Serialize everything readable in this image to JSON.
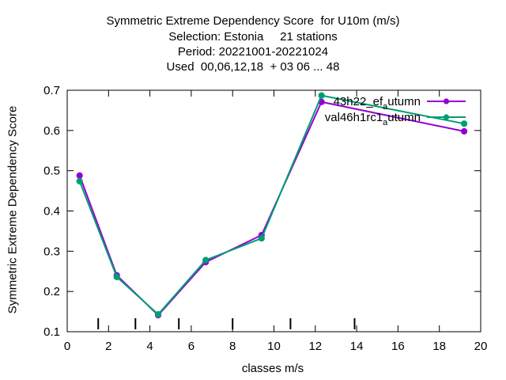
{
  "chart_data": {
    "type": "line",
    "title_lines": [
      "Symmetric Extreme Dependency Score  for U10m (m/s)",
      "Selection: Estonia     21 stations",
      "Period: 20221001-20221024",
      "Used  00,06,12,18  + 03 06 ... 48"
    ],
    "xlabel": "classes m/s",
    "ylabel": "Symmetric Extreme Dependency Score",
    "xlim": [
      0,
      20
    ],
    "ylim": [
      0.1,
      0.7
    ],
    "xticks": [
      0,
      2,
      4,
      6,
      8,
      10,
      12,
      14,
      16,
      18,
      20
    ],
    "yticks": [
      0.1,
      0.2,
      0.3,
      0.4,
      0.5,
      0.6,
      0.7
    ],
    "class_boundaries": [
      1.5,
      3.3,
      5.4,
      8,
      10.8,
      13.9
    ],
    "legend_position": "top-right",
    "grid": false,
    "series": [
      {
        "name": "43h22_ef_a utumn",
        "legend_main": "43h22_ef",
        "legend_sub": "a",
        "legend_rest": "utumn",
        "color": "#9400d3",
        "x": [
          0.6,
          2.4,
          4.4,
          6.7,
          9.4,
          12.3,
          19.2
        ],
        "y": [
          0.488,
          0.24,
          0.141,
          0.273,
          0.34,
          0.671,
          0.598
        ]
      },
      {
        "name": "val46h1rc1_a utumn",
        "legend_main": "val46h1rc1",
        "legend_sub": "a",
        "legend_rest": "utumn",
        "color": "#009e73",
        "x": [
          0.6,
          2.4,
          4.4,
          6.7,
          9.4,
          12.3,
          19.2
        ],
        "y": [
          0.474,
          0.236,
          0.143,
          0.278,
          0.332,
          0.687,
          0.617
        ]
      }
    ]
  }
}
